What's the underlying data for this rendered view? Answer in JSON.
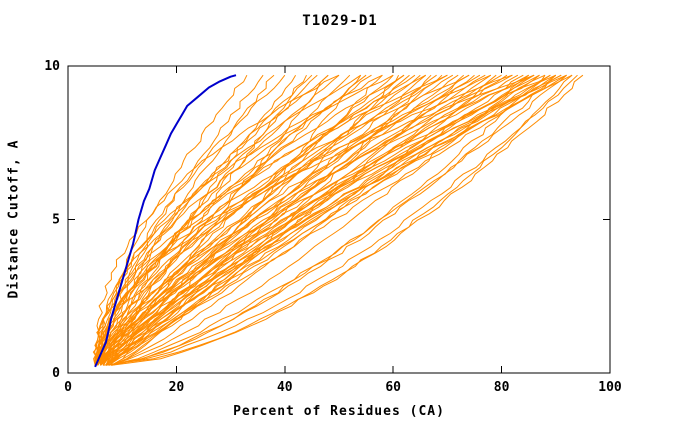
{
  "chart_data": {
    "type": "line",
    "title": "T1029-D1",
    "xlabel": "Percent of Residues (CA)",
    "ylabel": "Distance Cutoff, A",
    "xlim": [
      0,
      100
    ],
    "ylim": [
      0,
      10
    ],
    "x_ticks": [
      0,
      20,
      40,
      60,
      80,
      100
    ],
    "y_ticks": [
      0,
      5,
      10
    ],
    "grid": false,
    "legend": "none",
    "frame_color": "#000000",
    "highlight_curve": {
      "name": "highlighted-model",
      "color": "#0000cc",
      "width": 2,
      "points": [
        [
          5,
          0.2
        ],
        [
          6,
          0.6
        ],
        [
          7,
          1.0
        ],
        [
          7.5,
          1.4
        ],
        [
          8,
          1.8
        ],
        [
          8.5,
          2.1
        ],
        [
          9,
          2.4
        ],
        [
          9.5,
          2.7
        ],
        [
          10,
          3.0
        ],
        [
          10.5,
          3.3
        ],
        [
          11,
          3.6
        ],
        [
          11.5,
          3.9
        ],
        [
          12,
          4.2
        ],
        [
          12.5,
          4.6
        ],
        [
          13,
          5.0
        ],
        [
          13.5,
          5.3
        ],
        [
          14,
          5.6
        ],
        [
          15,
          6.0
        ],
        [
          15.5,
          6.3
        ],
        [
          16,
          6.6
        ],
        [
          17,
          7.0
        ],
        [
          18,
          7.4
        ],
        [
          19,
          7.8
        ],
        [
          20,
          8.1
        ],
        [
          21,
          8.4
        ],
        [
          22,
          8.7
        ],
        [
          24,
          9.0
        ],
        [
          26,
          9.3
        ],
        [
          28,
          9.5
        ],
        [
          30,
          9.65
        ],
        [
          31,
          9.7
        ]
      ]
    },
    "model_curves": {
      "name": "model-curves",
      "color": "#ff8c00",
      "width": 1,
      "y_range": [
        0.25,
        9.7
      ],
      "curves": [
        [
          5,
          33,
          1.5
        ],
        [
          5.5,
          36,
          1.4
        ],
        [
          6,
          38,
          1.3
        ],
        [
          5,
          40,
          1.6
        ],
        [
          6.5,
          42,
          1.2
        ],
        [
          7,
          44,
          1.1
        ],
        [
          5.5,
          45,
          1.5
        ],
        [
          6,
          46,
          1.3
        ],
        [
          7,
          48,
          1.0
        ],
        [
          5,
          50,
          1.4
        ],
        [
          6,
          52,
          1.2
        ],
        [
          7.5,
          54,
          0.9
        ],
        [
          6,
          55,
          1.3
        ],
        [
          5.5,
          56,
          1.5
        ],
        [
          7,
          58,
          1.0
        ],
        [
          6,
          60,
          1.2
        ],
        [
          8,
          61,
          0.9
        ],
        [
          6.5,
          62,
          1.3
        ],
        [
          7,
          63,
          1.1
        ],
        [
          5.5,
          64,
          1.4
        ],
        [
          6,
          65,
          1.2
        ],
        [
          7,
          66,
          1.0
        ],
        [
          8,
          67,
          0.85
        ],
        [
          6,
          68,
          1.3
        ],
        [
          7.5,
          69,
          1.0
        ],
        [
          5.5,
          70,
          1.5
        ],
        [
          6,
          71,
          1.2
        ],
        [
          7,
          72,
          1.1
        ],
        [
          8,
          73,
          0.9
        ],
        [
          6.5,
          74,
          1.3
        ],
        [
          7,
          75,
          1.0
        ],
        [
          5.5,
          76,
          1.4
        ],
        [
          6,
          77,
          1.2
        ],
        [
          7,
          78,
          1.0
        ],
        [
          8,
          79,
          0.85
        ],
        [
          6,
          80,
          1.3
        ],
        [
          7,
          81,
          1.1
        ],
        [
          5.5,
          82,
          1.4
        ],
        [
          6.5,
          83,
          1.2
        ],
        [
          7,
          84,
          1.0
        ],
        [
          8,
          85,
          0.8
        ],
        [
          6,
          85,
          1.3
        ],
        [
          7,
          86,
          1.1
        ],
        [
          5.5,
          86,
          1.5
        ],
        [
          6,
          87,
          1.2
        ],
        [
          7.5,
          87,
          1.0
        ],
        [
          8,
          88,
          0.7
        ],
        [
          6,
          88,
          1.3
        ],
        [
          7,
          89,
          1.1
        ],
        [
          5.5,
          89,
          1.4
        ],
        [
          6,
          90,
          1.25
        ],
        [
          7,
          90,
          1.05
        ],
        [
          8,
          90,
          0.7
        ],
        [
          6.5,
          91,
          1.2
        ],
        [
          7,
          91,
          1.0
        ],
        [
          5.5,
          92,
          1.35
        ],
        [
          6,
          92,
          1.15
        ],
        [
          7.5,
          92,
          0.75
        ],
        [
          8,
          93,
          0.6
        ],
        [
          6,
          93,
          1.2
        ],
        [
          7,
          94,
          0.65
        ],
        [
          6.5,
          95,
          0.6
        ],
        [
          5,
          58,
          1.8
        ],
        [
          5.5,
          62,
          1.7
        ],
        [
          6,
          66,
          1.75
        ],
        [
          5,
          70,
          1.9
        ],
        [
          5.5,
          74,
          1.8
        ],
        [
          6,
          78,
          1.7
        ],
        [
          5,
          82,
          1.85
        ],
        [
          5.5,
          86,
          1.9
        ],
        [
          6,
          48,
          1.7
        ],
        [
          5,
          54,
          1.9
        ],
        [
          5,
          50,
          2.3
        ],
        [
          5.2,
          60,
          2.1
        ]
      ]
    },
    "jitter": {
      "seed": 11,
      "amplitude": 0.5
    }
  }
}
